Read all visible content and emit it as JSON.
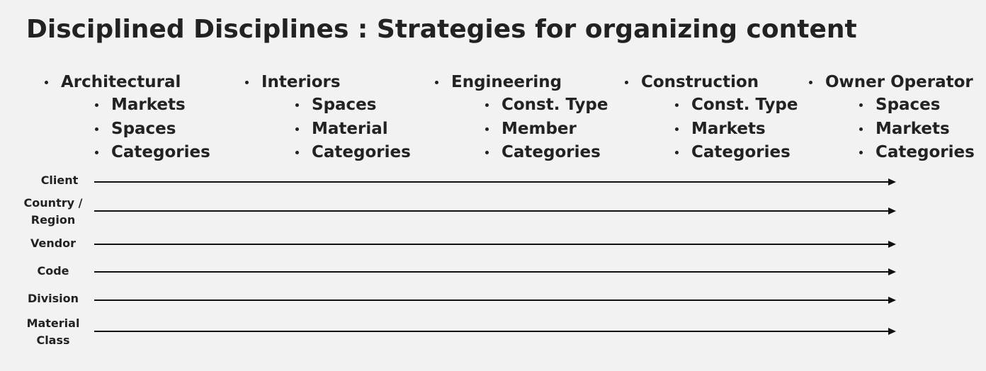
{
  "title": "Disciplined Disciplines : Strategies for organizing content",
  "disciplines": [
    {
      "name": "Architectural",
      "items": [
        "Markets",
        "Spaces",
        "Categories"
      ]
    },
    {
      "name": "Interiors",
      "items": [
        "Spaces",
        "Material",
        "Categories"
      ]
    },
    {
      "name": "Engineering",
      "items": [
        "Const. Type",
        "Member",
        "Categories"
      ]
    },
    {
      "name": "Construction",
      "items": [
        "Const. Type",
        "Markets",
        "Categories"
      ]
    },
    {
      "name": "Owner Operator",
      "items": [
        "Spaces",
        "Markets",
        "Categories"
      ]
    }
  ],
  "rows": [
    {
      "line1": "Client",
      "line2": ""
    },
    {
      "line1": "Country /",
      "line2": "Region"
    },
    {
      "line1": "Vendor",
      "line2": ""
    },
    {
      "line1": "Code",
      "line2": ""
    },
    {
      "line1": "Division",
      "line2": ""
    },
    {
      "line1": "Material",
      "line2": "Class"
    }
  ],
  "colors": {
    "background": "#f2f2f2",
    "text": "#222222",
    "arrow": "#111111"
  }
}
